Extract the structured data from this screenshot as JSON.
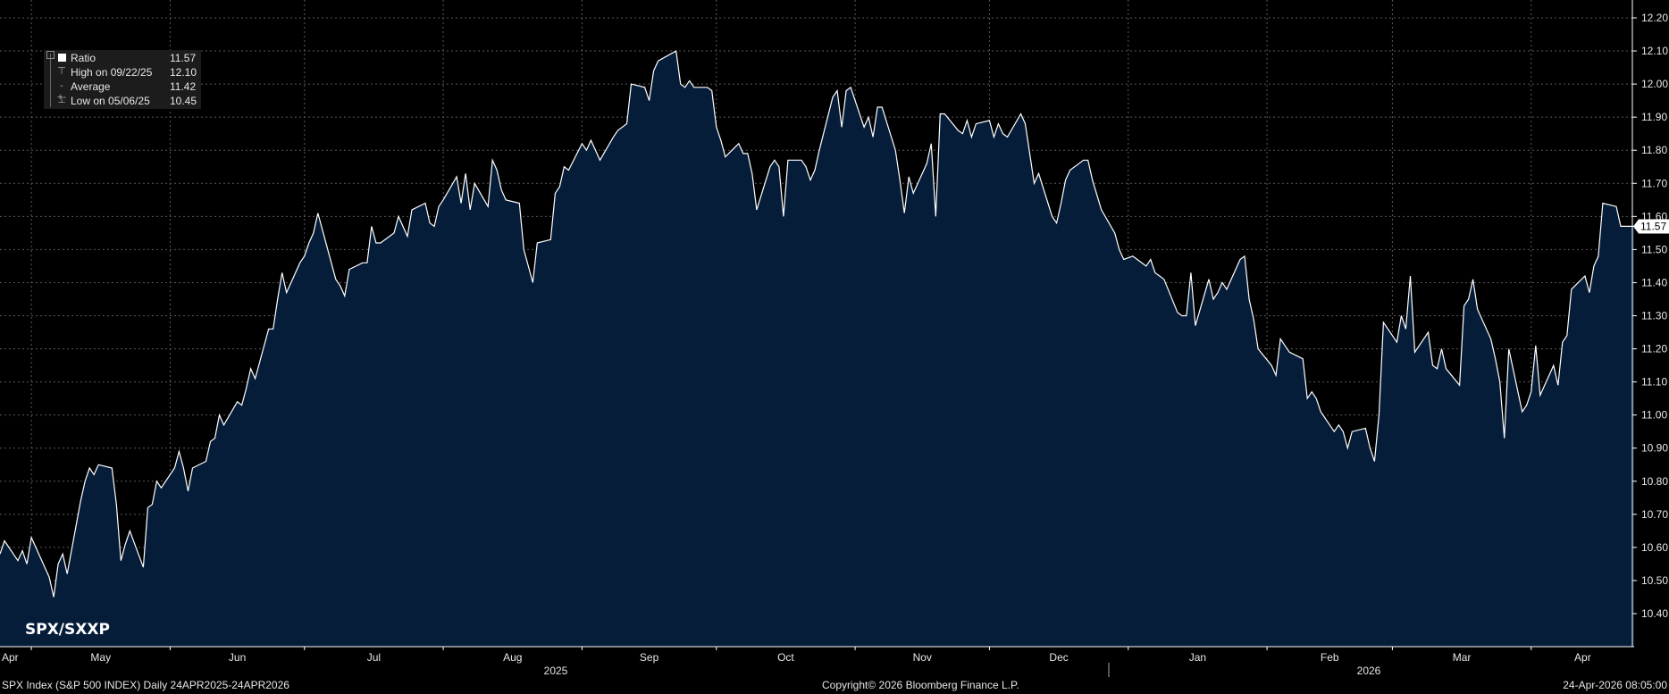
{
  "legend": {
    "ratio_label": "Ratio",
    "ratio_value": "11.57",
    "high_label": "High on 09/22/25",
    "high_value": "12.10",
    "avg_label": "Average",
    "avg_value": "11.42",
    "low_label": "Low on 05/06/25",
    "low_value": "10.45"
  },
  "chart_title": "SPX/SXXP",
  "footer": {
    "left": "SPX Index (S&P 500 INDEX) Daily 24APR2025-24APR2026",
    "center": "Copyright© 2026 Bloomberg Finance L.P.",
    "right": "24-Apr-2026 08:05:00"
  },
  "colors": {
    "background": "#000000",
    "area_fill": "#061d3a",
    "line": "#ffffff",
    "grid": "#5a5a5a"
  },
  "chart_data": {
    "type": "area",
    "title": "SPX/SXXP",
    "ylim": [
      10.34,
      12.24
    ],
    "y_ticks": [
      "10.40",
      "10.50",
      "10.60",
      "10.70",
      "10.80",
      "10.90",
      "11.00",
      "11.10",
      "11.20",
      "11.30",
      "11.40",
      "11.50",
      "11.60",
      "11.70",
      "11.80",
      "11.90",
      "12.00",
      "12.10",
      "12.20"
    ],
    "last_value_label": "11.57",
    "months": [
      "Apr",
      "May",
      "Jun",
      "Jul",
      "Aug",
      "Sep",
      "Oct",
      "Nov",
      "Dec",
      "Jan",
      "Feb",
      "Mar",
      "Apr"
    ],
    "years": [
      "2025",
      "2026"
    ],
    "x_range": [
      "2025-04-24",
      "2026-04-24"
    ],
    "grid": true,
    "series": [
      {
        "values": [
          [
            "2025-04-24",
            10.58
          ],
          [
            "2025-04-25",
            10.62
          ],
          [
            "2025-04-28",
            10.56
          ],
          [
            "2025-04-29",
            10.59
          ],
          [
            "2025-04-30",
            10.55
          ],
          [
            "2025-05-01",
            10.63
          ],
          [
            "2025-05-02",
            10.6
          ],
          [
            "2025-05-05",
            10.51
          ],
          [
            "2025-05-06",
            10.45
          ],
          [
            "2025-05-07",
            10.55
          ],
          [
            "2025-05-08",
            10.58
          ],
          [
            "2025-05-09",
            10.52
          ],
          [
            "2025-05-12",
            10.74
          ],
          [
            "2025-05-13",
            10.8
          ],
          [
            "2025-05-14",
            10.84
          ],
          [
            "2025-05-15",
            10.82
          ],
          [
            "2025-05-16",
            10.85
          ],
          [
            "2025-05-19",
            10.84
          ],
          [
            "2025-05-20",
            10.73
          ],
          [
            "2025-05-21",
            10.56
          ],
          [
            "2025-05-22",
            10.61
          ],
          [
            "2025-05-23",
            10.65
          ],
          [
            "2025-05-26",
            10.54
          ],
          [
            "2025-05-27",
            10.72
          ],
          [
            "2025-05-28",
            10.73
          ],
          [
            "2025-05-29",
            10.8
          ],
          [
            "2025-05-30",
            10.78
          ],
          [
            "2025-06-02",
            10.84
          ],
          [
            "2025-06-03",
            10.89
          ],
          [
            "2025-06-04",
            10.84
          ],
          [
            "2025-06-05",
            10.77
          ],
          [
            "2025-06-06",
            10.84
          ],
          [
            "2025-06-09",
            10.86
          ],
          [
            "2025-06-10",
            10.92
          ],
          [
            "2025-06-11",
            10.93
          ],
          [
            "2025-06-12",
            11.0
          ],
          [
            "2025-06-13",
            10.97
          ],
          [
            "2025-06-16",
            11.04
          ],
          [
            "2025-06-17",
            11.03
          ],
          [
            "2025-06-18",
            11.08
          ],
          [
            "2025-06-19",
            11.14
          ],
          [
            "2025-06-20",
            11.11
          ],
          [
            "2025-06-23",
            11.26
          ],
          [
            "2025-06-24",
            11.26
          ],
          [
            "2025-06-25",
            11.35
          ],
          [
            "2025-06-26",
            11.43
          ],
          [
            "2025-06-27",
            11.37
          ],
          [
            "2025-06-30",
            11.46
          ],
          [
            "2025-07-01",
            11.48
          ],
          [
            "2025-07-02",
            11.52
          ],
          [
            "2025-07-03",
            11.55
          ],
          [
            "2025-07-04",
            11.61
          ],
          [
            "2025-07-07",
            11.46
          ],
          [
            "2025-07-08",
            11.41
          ],
          [
            "2025-07-09",
            11.39
          ],
          [
            "2025-07-10",
            11.36
          ],
          [
            "2025-07-11",
            11.44
          ],
          [
            "2025-07-14",
            11.46
          ],
          [
            "2025-07-15",
            11.46
          ],
          [
            "2025-07-16",
            11.57
          ],
          [
            "2025-07-17",
            11.52
          ],
          [
            "2025-07-18",
            11.52
          ],
          [
            "2025-07-21",
            11.55
          ],
          [
            "2025-07-22",
            11.6
          ],
          [
            "2025-07-23",
            11.57
          ],
          [
            "2025-07-24",
            11.54
          ],
          [
            "2025-07-25",
            11.62
          ],
          [
            "2025-07-28",
            11.64
          ],
          [
            "2025-07-29",
            11.58
          ],
          [
            "2025-07-30",
            11.57
          ],
          [
            "2025-07-31",
            11.63
          ],
          [
            "2025-08-01",
            11.65
          ],
          [
            "2025-08-04",
            11.72
          ],
          [
            "2025-08-05",
            11.64
          ],
          [
            "2025-08-06",
            11.73
          ],
          [
            "2025-08-07",
            11.62
          ],
          [
            "2025-08-08",
            11.7
          ],
          [
            "2025-08-11",
            11.63
          ],
          [
            "2025-08-12",
            11.77
          ],
          [
            "2025-08-13",
            11.74
          ],
          [
            "2025-08-14",
            11.68
          ],
          [
            "2025-08-15",
            11.65
          ],
          [
            "2025-08-18",
            11.64
          ],
          [
            "2025-08-19",
            11.5
          ],
          [
            "2025-08-20",
            11.45
          ],
          [
            "2025-08-21",
            11.4
          ],
          [
            "2025-08-22",
            11.52
          ],
          [
            "2025-08-25",
            11.53
          ],
          [
            "2025-08-26",
            11.67
          ],
          [
            "2025-08-27",
            11.69
          ],
          [
            "2025-08-28",
            11.75
          ],
          [
            "2025-08-29",
            11.74
          ],
          [
            "2025-09-01",
            11.82
          ],
          [
            "2025-09-02",
            11.8
          ],
          [
            "2025-09-03",
            11.83
          ],
          [
            "2025-09-04",
            11.8
          ],
          [
            "2025-09-05",
            11.77
          ],
          [
            "2025-09-08",
            11.84
          ],
          [
            "2025-09-09",
            11.86
          ],
          [
            "2025-09-10",
            11.87
          ],
          [
            "2025-09-11",
            11.88
          ],
          [
            "2025-09-12",
            12.0
          ],
          [
            "2025-09-15",
            11.99
          ],
          [
            "2025-09-16",
            11.95
          ],
          [
            "2025-09-17",
            12.04
          ],
          [
            "2025-09-18",
            12.07
          ],
          [
            "2025-09-22",
            12.1
          ],
          [
            "2025-09-23",
            12.0
          ],
          [
            "2025-09-24",
            11.99
          ],
          [
            "2025-09-25",
            12.01
          ],
          [
            "2025-09-26",
            11.99
          ],
          [
            "2025-09-29",
            11.99
          ],
          [
            "2025-09-30",
            11.98
          ],
          [
            "2025-10-01",
            11.87
          ],
          [
            "2025-10-02",
            11.83
          ],
          [
            "2025-10-03",
            11.78
          ],
          [
            "2025-10-06",
            11.82
          ],
          [
            "2025-10-07",
            11.79
          ],
          [
            "2025-10-08",
            11.79
          ],
          [
            "2025-10-09",
            11.73
          ],
          [
            "2025-10-10",
            11.62
          ],
          [
            "2025-10-13",
            11.75
          ],
          [
            "2025-10-14",
            11.77
          ],
          [
            "2025-10-15",
            11.75
          ],
          [
            "2025-10-16",
            11.6
          ],
          [
            "2025-10-17",
            11.77
          ],
          [
            "2025-10-20",
            11.77
          ],
          [
            "2025-10-21",
            11.75
          ],
          [
            "2025-10-22",
            11.71
          ],
          [
            "2025-10-23",
            11.74
          ],
          [
            "2025-10-24",
            11.8
          ],
          [
            "2025-10-27",
            11.96
          ],
          [
            "2025-10-28",
            11.98
          ],
          [
            "2025-10-29",
            11.87
          ],
          [
            "2025-10-30",
            11.98
          ],
          [
            "2025-10-31",
            11.99
          ],
          [
            "2025-11-03",
            11.87
          ],
          [
            "2025-11-04",
            11.9
          ],
          [
            "2025-11-05",
            11.84
          ],
          [
            "2025-11-06",
            11.93
          ],
          [
            "2025-11-07",
            11.93
          ],
          [
            "2025-11-10",
            11.8
          ],
          [
            "2025-11-11",
            11.71
          ],
          [
            "2025-11-12",
            11.61
          ],
          [
            "2025-11-13",
            11.72
          ],
          [
            "2025-11-14",
            11.67
          ],
          [
            "2025-11-17",
            11.76
          ],
          [
            "2025-11-18",
            11.82
          ],
          [
            "2025-11-19",
            11.6
          ],
          [
            "2025-11-20",
            11.91
          ],
          [
            "2025-11-21",
            11.91
          ],
          [
            "2025-11-24",
            11.86
          ],
          [
            "2025-11-25",
            11.85
          ],
          [
            "2025-11-26",
            11.89
          ],
          [
            "2025-11-27",
            11.84
          ],
          [
            "2025-11-28",
            11.88
          ],
          [
            "2025-12-01",
            11.89
          ],
          [
            "2025-12-02",
            11.84
          ],
          [
            "2025-12-03",
            11.88
          ],
          [
            "2025-12-04",
            11.85
          ],
          [
            "2025-12-05",
            11.84
          ],
          [
            "2025-12-08",
            11.91
          ],
          [
            "2025-12-09",
            11.88
          ],
          [
            "2025-12-10",
            11.79
          ],
          [
            "2025-12-11",
            11.7
          ],
          [
            "2025-12-12",
            11.73
          ],
          [
            "2025-12-15",
            11.6
          ],
          [
            "2025-12-16",
            11.58
          ],
          [
            "2025-12-17",
            11.64
          ],
          [
            "2025-12-18",
            11.71
          ],
          [
            "2025-12-19",
            11.74
          ],
          [
            "2025-12-22",
            11.77
          ],
          [
            "2025-12-23",
            11.77
          ],
          [
            "2025-12-24",
            11.71
          ],
          [
            "2025-12-26",
            11.62
          ],
          [
            "2025-12-29",
            11.55
          ],
          [
            "2025-12-30",
            11.5
          ],
          [
            "2025-12-31",
            11.47
          ],
          [
            "2026-01-02",
            11.48
          ],
          [
            "2026-01-05",
            11.45
          ],
          [
            "2026-01-06",
            11.47
          ],
          [
            "2026-01-07",
            11.43
          ],
          [
            "2026-01-08",
            11.42
          ],
          [
            "2026-01-09",
            11.41
          ],
          [
            "2026-01-12",
            11.31
          ],
          [
            "2026-01-13",
            11.3
          ],
          [
            "2026-01-14",
            11.3
          ],
          [
            "2026-01-15",
            11.43
          ],
          [
            "2026-01-16",
            11.27
          ],
          [
            "2026-01-19",
            11.41
          ],
          [
            "2026-01-20",
            11.35
          ],
          [
            "2026-01-21",
            11.37
          ],
          [
            "2026-01-22",
            11.4
          ],
          [
            "2026-01-23",
            11.38
          ],
          [
            "2026-01-26",
            11.47
          ],
          [
            "2026-01-27",
            11.48
          ],
          [
            "2026-01-28",
            11.35
          ],
          [
            "2026-01-29",
            11.29
          ],
          [
            "2026-01-30",
            11.2
          ],
          [
            "2026-02-02",
            11.15
          ],
          [
            "2026-02-03",
            11.12
          ],
          [
            "2026-02-04",
            11.23
          ],
          [
            "2026-02-05",
            11.21
          ],
          [
            "2026-02-06",
            11.19
          ],
          [
            "2026-02-09",
            11.17
          ],
          [
            "2026-02-10",
            11.05
          ],
          [
            "2026-02-11",
            11.07
          ],
          [
            "2026-02-12",
            11.05
          ],
          [
            "2026-02-13",
            11.01
          ],
          [
            "2026-02-16",
            10.95
          ],
          [
            "2026-02-17",
            10.97
          ],
          [
            "2026-02-18",
            10.95
          ],
          [
            "2026-02-19",
            10.9
          ],
          [
            "2026-02-20",
            10.95
          ],
          [
            "2026-02-23",
            10.96
          ],
          [
            "2026-02-24",
            10.9
          ],
          [
            "2026-02-25",
            10.86
          ],
          [
            "2026-02-26",
            11.0
          ],
          [
            "2026-02-27",
            11.28
          ],
          [
            "2026-03-02",
            11.22
          ],
          [
            "2026-03-03",
            11.3
          ],
          [
            "2026-03-04",
            11.26
          ],
          [
            "2026-03-05",
            11.42
          ],
          [
            "2026-03-06",
            11.19
          ],
          [
            "2026-03-09",
            11.25
          ],
          [
            "2026-03-10",
            11.15
          ],
          [
            "2026-03-11",
            11.14
          ],
          [
            "2026-03-12",
            11.2
          ],
          [
            "2026-03-13",
            11.14
          ],
          [
            "2026-03-16",
            11.09
          ],
          [
            "2026-03-17",
            11.33
          ],
          [
            "2026-03-18",
            11.35
          ],
          [
            "2026-03-19",
            11.41
          ],
          [
            "2026-03-20",
            11.32
          ],
          [
            "2026-03-23",
            11.23
          ],
          [
            "2026-03-24",
            11.17
          ],
          [
            "2026-03-25",
            11.1
          ],
          [
            "2026-03-26",
            10.93
          ],
          [
            "2026-03-27",
            11.2
          ],
          [
            "2026-03-30",
            11.01
          ],
          [
            "2026-03-31",
            11.03
          ],
          [
            "2026-04-01",
            11.07
          ],
          [
            "2026-04-02",
            11.21
          ],
          [
            "2026-04-03",
            11.06
          ],
          [
            "2026-04-06",
            11.15
          ],
          [
            "2026-04-07",
            11.09
          ],
          [
            "2026-04-08",
            11.22
          ],
          [
            "2026-04-09",
            11.24
          ],
          [
            "2026-04-10",
            11.38
          ],
          [
            "2026-04-13",
            11.42
          ],
          [
            "2026-04-14",
            11.37
          ],
          [
            "2026-04-15",
            11.45
          ],
          [
            "2026-04-16",
            11.48
          ],
          [
            "2026-04-17",
            11.64
          ],
          [
            "2026-04-20",
            11.63
          ],
          [
            "2026-04-21",
            11.57
          ],
          [
            "2026-04-24",
            11.57
          ]
        ]
      }
    ]
  }
}
